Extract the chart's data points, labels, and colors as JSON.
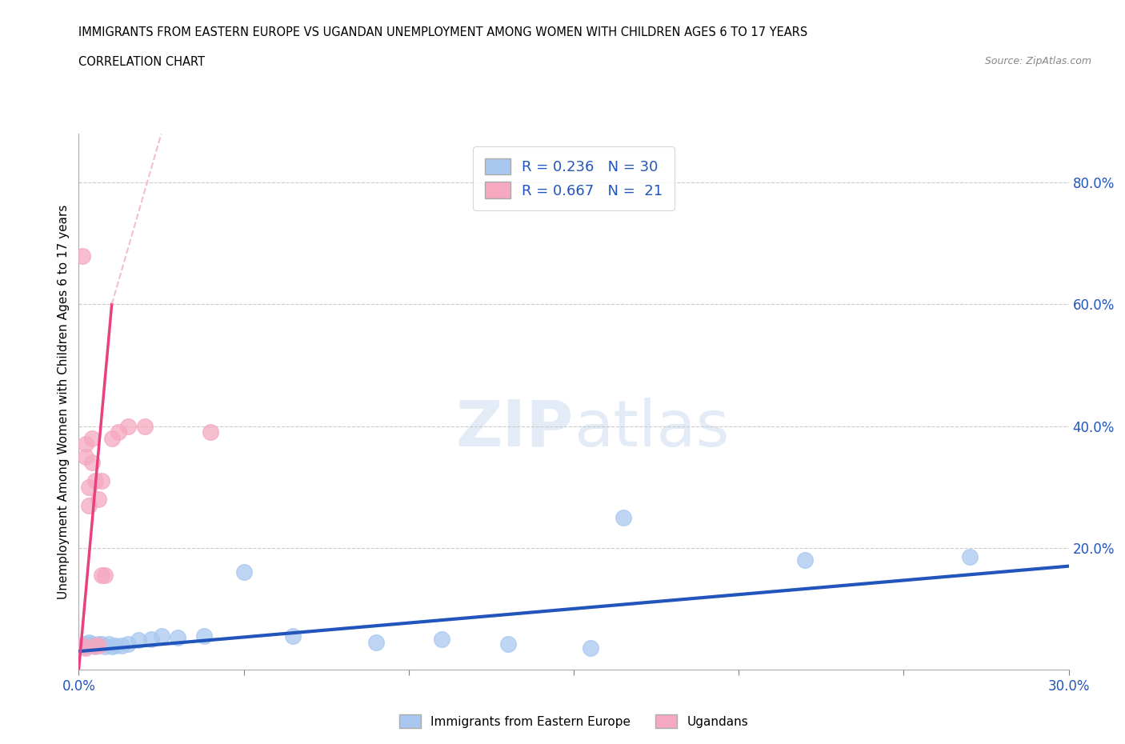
{
  "title": "IMMIGRANTS FROM EASTERN EUROPE VS UGANDAN UNEMPLOYMENT AMONG WOMEN WITH CHILDREN AGES 6 TO 17 YEARS",
  "subtitle": "CORRELATION CHART",
  "source": "Source: ZipAtlas.com",
  "ylabel": "Unemployment Among Women with Children Ages 6 to 17 years",
  "xlim": [
    0.0,
    0.3
  ],
  "ylim": [
    0.0,
    0.88
  ],
  "xticks": [
    0.0,
    0.05,
    0.1,
    0.15,
    0.2,
    0.25,
    0.3
  ],
  "yticks_right": [
    0.2,
    0.4,
    0.6,
    0.8
  ],
  "ytick_right_labels": [
    "20.0%",
    "40.0%",
    "60.0%",
    "80.0%"
  ],
  "blue_color": "#A8C8F0",
  "pink_color": "#F5A8C0",
  "blue_line_color": "#2255BB",
  "pink_line_color": "#E84080",
  "pink_line_dash": "#F0A0C0",
  "blue_R": 0.236,
  "blue_N": 30,
  "pink_R": 0.667,
  "pink_N": 21,
  "legend_label_blue": "Immigrants from Eastern Europe",
  "legend_label_pink": "Ugandans",
  "blue_scatter_x": [
    0.001,
    0.002,
    0.002,
    0.003,
    0.003,
    0.004,
    0.005,
    0.005,
    0.006,
    0.007,
    0.008,
    0.009,
    0.01,
    0.011,
    0.013,
    0.015,
    0.018,
    0.022,
    0.025,
    0.03,
    0.038,
    0.05,
    0.065,
    0.09,
    0.11,
    0.13,
    0.155,
    0.165,
    0.22,
    0.27
  ],
  "blue_scatter_y": [
    0.04,
    0.038,
    0.042,
    0.04,
    0.045,
    0.042,
    0.038,
    0.04,
    0.042,
    0.042,
    0.038,
    0.042,
    0.038,
    0.04,
    0.04,
    0.042,
    0.048,
    0.05,
    0.055,
    0.052,
    0.055,
    0.16,
    0.055,
    0.045,
    0.05,
    0.042,
    0.035,
    0.25,
    0.18,
    0.185
  ],
  "pink_scatter_x": [
    0.001,
    0.001,
    0.002,
    0.002,
    0.002,
    0.003,
    0.003,
    0.004,
    0.004,
    0.005,
    0.005,
    0.006,
    0.006,
    0.007,
    0.007,
    0.008,
    0.01,
    0.012,
    0.015,
    0.02,
    0.04
  ],
  "pink_scatter_y": [
    0.04,
    0.68,
    0.035,
    0.37,
    0.35,
    0.27,
    0.3,
    0.34,
    0.38,
    0.04,
    0.31,
    0.04,
    0.28,
    0.31,
    0.155,
    0.155,
    0.38,
    0.39,
    0.4,
    0.4,
    0.39
  ],
  "blue_trend_x0": 0.0,
  "blue_trend_y0": 0.03,
  "blue_trend_x1": 0.3,
  "blue_trend_y1": 0.17,
  "pink_trend_solid_x0": 0.0,
  "pink_trend_solid_y0": 0.0,
  "pink_trend_solid_x1": 0.01,
  "pink_trend_solid_y1": 0.6,
  "pink_trend_dash_x0": 0.0,
  "pink_trend_dash_y0": 0.0,
  "pink_trend_dash_x1": 0.025,
  "pink_trend_dash_y1": 0.88
}
